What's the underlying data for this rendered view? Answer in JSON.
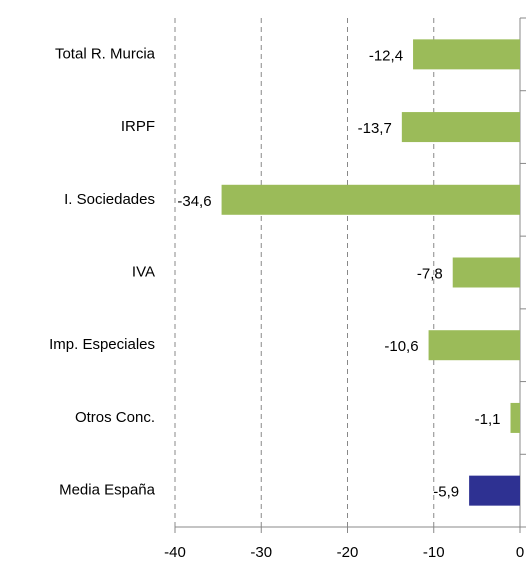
{
  "chart_data": {
    "type": "barh",
    "categories": [
      "Total R. Murcia",
      "IRPF",
      "I. Sociedades",
      "IVA",
      "Imp. Especiales",
      "Otros Conc.",
      "Media España"
    ],
    "values": [
      -12.4,
      -13.7,
      -34.6,
      -7.8,
      -10.6,
      -1.1,
      -5.9
    ],
    "value_labels": [
      "-12,4",
      "-13,7",
      "-34,6",
      "-7,8",
      "-10,6",
      "-1,1",
      "-5,9"
    ],
    "colors": [
      "#9bbb59",
      "#9bbb59",
      "#9bbb59",
      "#9bbb59",
      "#9bbb59",
      "#9bbb59",
      "#2e3192"
    ],
    "xlim": [
      -40,
      0
    ],
    "xticks": [
      -40,
      -30,
      -20,
      -10,
      0
    ],
    "grid": true
  }
}
